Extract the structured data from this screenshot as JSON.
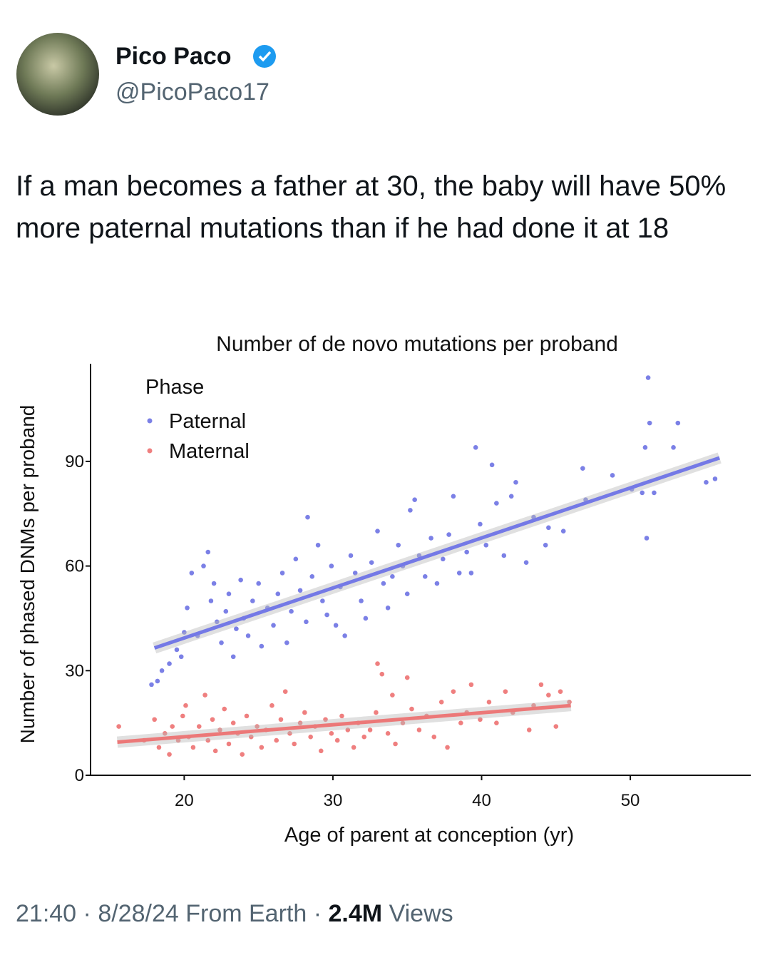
{
  "tweet": {
    "name": "Pico Paco",
    "handle": "@PicoPaco17",
    "text": "If a man becomes a father at 30, the baby will have 50% more paternal mutations than if he had done it at 18",
    "time": "21:40",
    "separator": "·",
    "date": "8/28/24",
    "source": "From Earth",
    "views_count": "2.4M",
    "views_label": "Views"
  },
  "chart_data": {
    "type": "scatter",
    "title": "Number of de novo mutations per proband",
    "x_label": "Age of parent at conception (yr)",
    "y_label": "Number of phased DNMs per proband",
    "legend_title": "Phase",
    "legend": "upper-left",
    "grid": false,
    "xlim": [
      13.7,
      58.1
    ],
    "xticks": [
      20,
      30,
      40,
      50
    ],
    "ylim": [
      0,
      118
    ],
    "yticks": [
      0,
      30,
      60,
      90
    ],
    "series": [
      {
        "name": "Paternal",
        "color": "#7b80e6",
        "fit_color": "#7479e6",
        "x": [
          17.8,
          18.2,
          18.5,
          19,
          19.5,
          19.8,
          20,
          20.2,
          20.5,
          20.9,
          21.3,
          21.6,
          21.8,
          22,
          22.2,
          22.5,
          22.8,
          23,
          23.3,
          23.5,
          23.8,
          24,
          24.3,
          24.6,
          25,
          25.2,
          25.6,
          26,
          26.3,
          26.6,
          26.9,
          27.2,
          27.5,
          27.8,
          28.2,
          28.3,
          28.6,
          29,
          29.3,
          29.6,
          29.9,
          30.2,
          30.5,
          30.8,
          31.2,
          31.5,
          31.9,
          32.2,
          32.6,
          33,
          33.4,
          33.7,
          34,
          34.4,
          34.7,
          35,
          35.2,
          35.5,
          35.8,
          36.2,
          36.6,
          37,
          37.4,
          37.8,
          38.1,
          38.5,
          39,
          39.3,
          39.6,
          39.9,
          40.3,
          40.7,
          41,
          41.5,
          42,
          42.3,
          43,
          43.5,
          44.3,
          44.5,
          45.5,
          46.8,
          47,
          48.8,
          50.1,
          50.8,
          51,
          51.1,
          51.2,
          51.3,
          52.9,
          53.2,
          55.1,
          55.7,
          51.6
        ],
        "values": [
          26,
          27,
          30,
          32,
          36,
          34,
          41,
          48,
          58,
          40,
          60,
          64,
          50,
          55,
          44,
          38,
          47,
          52,
          34,
          42,
          56,
          45,
          40,
          50,
          55,
          37,
          48,
          43,
          52,
          58,
          38,
          47,
          62,
          53,
          44,
          74,
          57,
          66,
          50,
          46,
          60,
          43,
          54,
          40,
          63,
          58,
          50,
          45,
          61,
          70,
          55,
          48,
          57,
          66,
          60,
          52,
          76,
          79,
          63,
          57,
          68,
          55,
          62,
          69,
          80,
          58,
          64,
          58,
          94,
          72,
          66,
          89,
          78,
          63,
          80,
          84,
          61,
          74,
          66,
          71,
          70,
          88,
          79,
          86,
          82,
          81,
          94,
          68,
          114,
          101,
          94,
          101,
          84,
          85,
          81
        ],
        "fit_x": [
          18,
          56
        ],
        "fit_values": [
          36.5,
          91
        ]
      },
      {
        "name": "Maternal",
        "color": "#ef7f7f",
        "fit_color": "#ec7878",
        "x": [
          15.6,
          17.3,
          18,
          18.3,
          18.7,
          19,
          19.2,
          19.6,
          19.9,
          20.1,
          20.3,
          20.6,
          21,
          21.4,
          21.6,
          21.9,
          22.1,
          22.4,
          22.7,
          23,
          23.3,
          23.6,
          23.9,
          24.2,
          24.5,
          24.9,
          25.2,
          25.5,
          25.9,
          26.2,
          26.5,
          26.8,
          27.1,
          27.4,
          27.8,
          28.1,
          28.5,
          28.8,
          29.2,
          29.5,
          29.9,
          30.3,
          30.6,
          31,
          31.4,
          31.7,
          32.1,
          32.5,
          32.9,
          33,
          33.3,
          33.7,
          34,
          34.2,
          34.7,
          35,
          35.3,
          35.8,
          36.3,
          36.8,
          37.3,
          37.7,
          38.1,
          38.6,
          39,
          39.3,
          39.9,
          40.5,
          41,
          41.6,
          42.1,
          43.2,
          43.5,
          44,
          44.5,
          45,
          45.3,
          45.9
        ],
        "values": [
          14,
          10,
          16,
          8,
          12,
          6,
          14,
          10,
          17,
          20,
          11,
          8,
          14,
          23,
          10,
          16,
          7,
          13,
          19,
          9,
          15,
          12,
          6,
          17,
          11,
          14,
          8,
          13,
          20,
          10,
          16,
          24,
          12,
          9,
          15,
          18,
          11,
          14,
          7,
          16,
          12,
          10,
          17,
          13,
          8,
          15,
          11,
          13,
          18,
          32,
          29,
          12,
          23,
          9,
          15,
          28,
          19,
          13,
          17,
          11,
          21,
          8,
          24,
          15,
          18,
          26,
          16,
          21,
          15,
          24,
          18,
          13,
          20,
          26,
          23,
          14,
          24,
          21
        ],
        "fit_x": [
          15.5,
          46
        ],
        "fit_values": [
          9.5,
          20
        ]
      }
    ]
  }
}
